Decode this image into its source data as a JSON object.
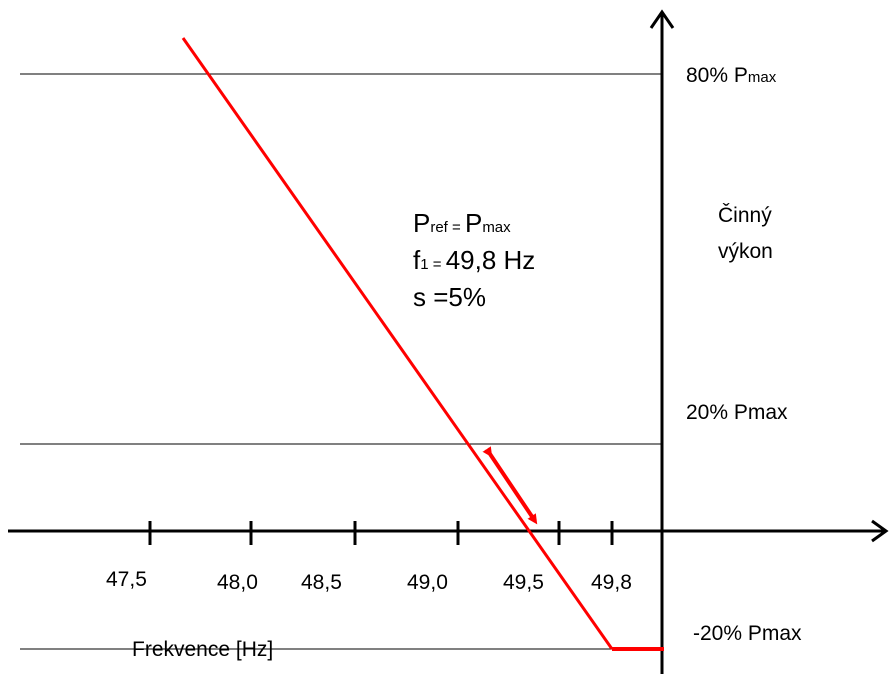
{
  "diagram": {
    "x_axis": {
      "title": "Frekvence [Hz]",
      "ticks": [
        "47,5",
        "48,0",
        "48,5",
        "49,0",
        "49,5",
        "49,8"
      ]
    },
    "y_axis": {
      "title_line1": "Činný",
      "title_line2": "výkon"
    },
    "levels": {
      "p80_main": "80% P",
      "p80_sub": "max",
      "p20": "20% Pmax",
      "m20": "-20% Pmax"
    },
    "params": {
      "pref_main": "P",
      "pref_sub": "ref",
      "pref_eq": " = ",
      "pref_rhs_main": "P",
      "pref_rhs_sub": "max",
      "f1_main": "f",
      "f1_sub": "1",
      "f1_eq": " = ",
      "f1_value": "49,8 Hz",
      "s_line": "s =5%"
    },
    "colors": {
      "curve": "#ff0000",
      "axes": "#000000",
      "background": "#ffffff"
    }
  }
}
